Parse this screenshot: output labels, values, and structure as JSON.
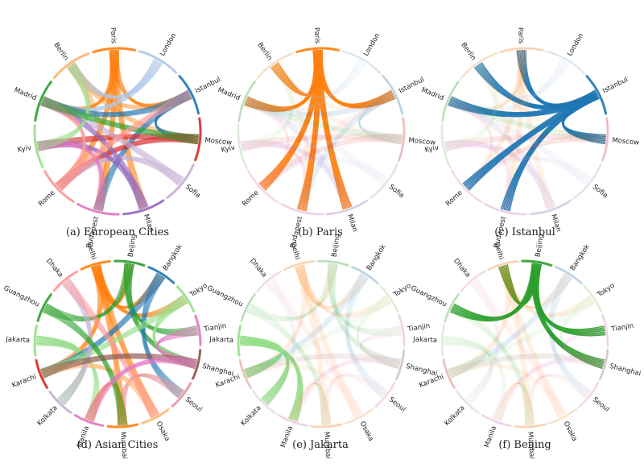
{
  "panels": [
    {
      "id": "a",
      "caption": "(a) European Cities",
      "group": "europe",
      "highlight": null
    },
    {
      "id": "b",
      "caption": "(b) Paris",
      "group": "europe",
      "highlight": "Paris"
    },
    {
      "id": "c",
      "caption": "(c) Istanbul",
      "group": "europe",
      "highlight": "Istanbul"
    },
    {
      "id": "d",
      "caption": "(d) Asian Cities",
      "group": "asia",
      "highlight": null
    },
    {
      "id": "e",
      "caption": "(e) Jakarta",
      "group": "asia",
      "highlight": "Jakarta"
    },
    {
      "id": "f",
      "caption": "(f) Beijing",
      "group": "asia",
      "highlight": "Beijing"
    }
  ],
  "chart_data": [
    {
      "type": "chord",
      "group": "europe",
      "nodes": [
        {
          "name": "Berlin",
          "color": "#fdb56b"
        },
        {
          "name": "Paris",
          "color": "#ff7f0e"
        },
        {
          "name": "London",
          "color": "#aec7e8"
        },
        {
          "name": "Istanbul",
          "color": "#1f77b4"
        },
        {
          "name": "Moscow",
          "color": "#d62728"
        },
        {
          "name": "Sofia",
          "color": "#c5b0d5"
        },
        {
          "name": "Milan",
          "color": "#9467bd"
        },
        {
          "name": "Budapest",
          "color": "#e377c2"
        },
        {
          "name": "Rome",
          "color": "#ff9896"
        },
        {
          "name": "Kyiv",
          "color": "#98df8a"
        },
        {
          "name": "Madrid",
          "color": "#2ca02c"
        }
      ],
      "links": [
        [
          "Berlin",
          "Paris"
        ],
        [
          "Berlin",
          "Moscow"
        ],
        [
          "Berlin",
          "Istanbul"
        ],
        [
          "Berlin",
          "Budapest"
        ],
        [
          "Paris",
          "Istanbul"
        ],
        [
          "Paris",
          "Milan"
        ],
        [
          "Paris",
          "Budapest"
        ],
        [
          "Paris",
          "Madrid"
        ],
        [
          "Paris",
          "Rome"
        ],
        [
          "London",
          "Madrid"
        ],
        [
          "London",
          "Berlin"
        ],
        [
          "Istanbul",
          "Budapest"
        ],
        [
          "Istanbul",
          "Madrid"
        ],
        [
          "Istanbul",
          "Moscow"
        ],
        [
          "Moscow",
          "Rome"
        ],
        [
          "Moscow",
          "Kyiv"
        ],
        [
          "Sofia",
          "Madrid"
        ],
        [
          "Sofia",
          "Rome"
        ],
        [
          "Milan",
          "Madrid"
        ],
        [
          "Milan",
          "Kyiv"
        ],
        [
          "Budapest",
          "Kyiv"
        ],
        [
          "Rome",
          "Madrid"
        ],
        [
          "Kyiv",
          "Berlin"
        ],
        [
          "Madrid",
          "Moscow"
        ],
        [
          "Rome",
          "Istanbul"
        ]
      ]
    },
    {
      "type": "chord",
      "group": "asia",
      "nodes": [
        {
          "name": "Dhaka",
          "color": "#ff9896"
        },
        {
          "name": "Delhi",
          "color": "#ff7f0e"
        },
        {
          "name": "Beijing",
          "color": "#2ca02c"
        },
        {
          "name": "Bangkok",
          "color": "#1f77b4"
        },
        {
          "name": "Tokyo",
          "color": "#98df8a"
        },
        {
          "name": "Tianjin",
          "color": "#e377c2"
        },
        {
          "name": "Shanghai",
          "color": "#8c564b"
        },
        {
          "name": "Seoul",
          "color": "#e7969c"
        },
        {
          "name": "Osaka",
          "color": "#ffbb78"
        },
        {
          "name": "Mumbai",
          "color": "#ff7f0e"
        },
        {
          "name": "Manila",
          "color": "#e377c2"
        },
        {
          "name": "Kolkata",
          "color": "#c5b0d5"
        },
        {
          "name": "Karachi",
          "color": "#d62728"
        },
        {
          "name": "Jakarta",
          "color": "#98df8a"
        },
        {
          "name": "Guangzhou",
          "color": "#2ca02c"
        }
      ],
      "links": [
        [
          "Delhi",
          "Beijing"
        ],
        [
          "Delhi",
          "Karachi"
        ],
        [
          "Delhi",
          "Mumbai"
        ],
        [
          "Delhi",
          "Tokyo"
        ],
        [
          "Delhi",
          "Bangkok"
        ],
        [
          "Delhi",
          "Osaka"
        ],
        [
          "Jakarta",
          "Kolkata"
        ],
        [
          "Jakarta",
          "Manila"
        ],
        [
          "Jakarta",
          "Karachi"
        ],
        [
          "Beijing",
          "Guangzhou"
        ],
        [
          "Beijing",
          "Tianjin"
        ],
        [
          "Beijing",
          "Shanghai"
        ],
        [
          "Bangkok",
          "Karachi"
        ],
        [
          "Bangkok",
          "Seoul"
        ],
        [
          "Tokyo",
          "Shanghai"
        ],
        [
          "Tokyo",
          "Karachi"
        ],
        [
          "Tianjin",
          "Shanghai"
        ],
        [
          "Seoul",
          "Mumbai"
        ],
        [
          "Osaka",
          "Karachi"
        ],
        [
          "Mumbai",
          "Manila"
        ],
        [
          "Kolkata",
          "Dhaka"
        ],
        [
          "Guangzhou",
          "Mumbai"
        ],
        [
          "Dhaka",
          "Osaka"
        ],
        [
          "Shanghai",
          "Karachi"
        ],
        [
          "Manila",
          "Shanghai"
        ]
      ]
    }
  ]
}
